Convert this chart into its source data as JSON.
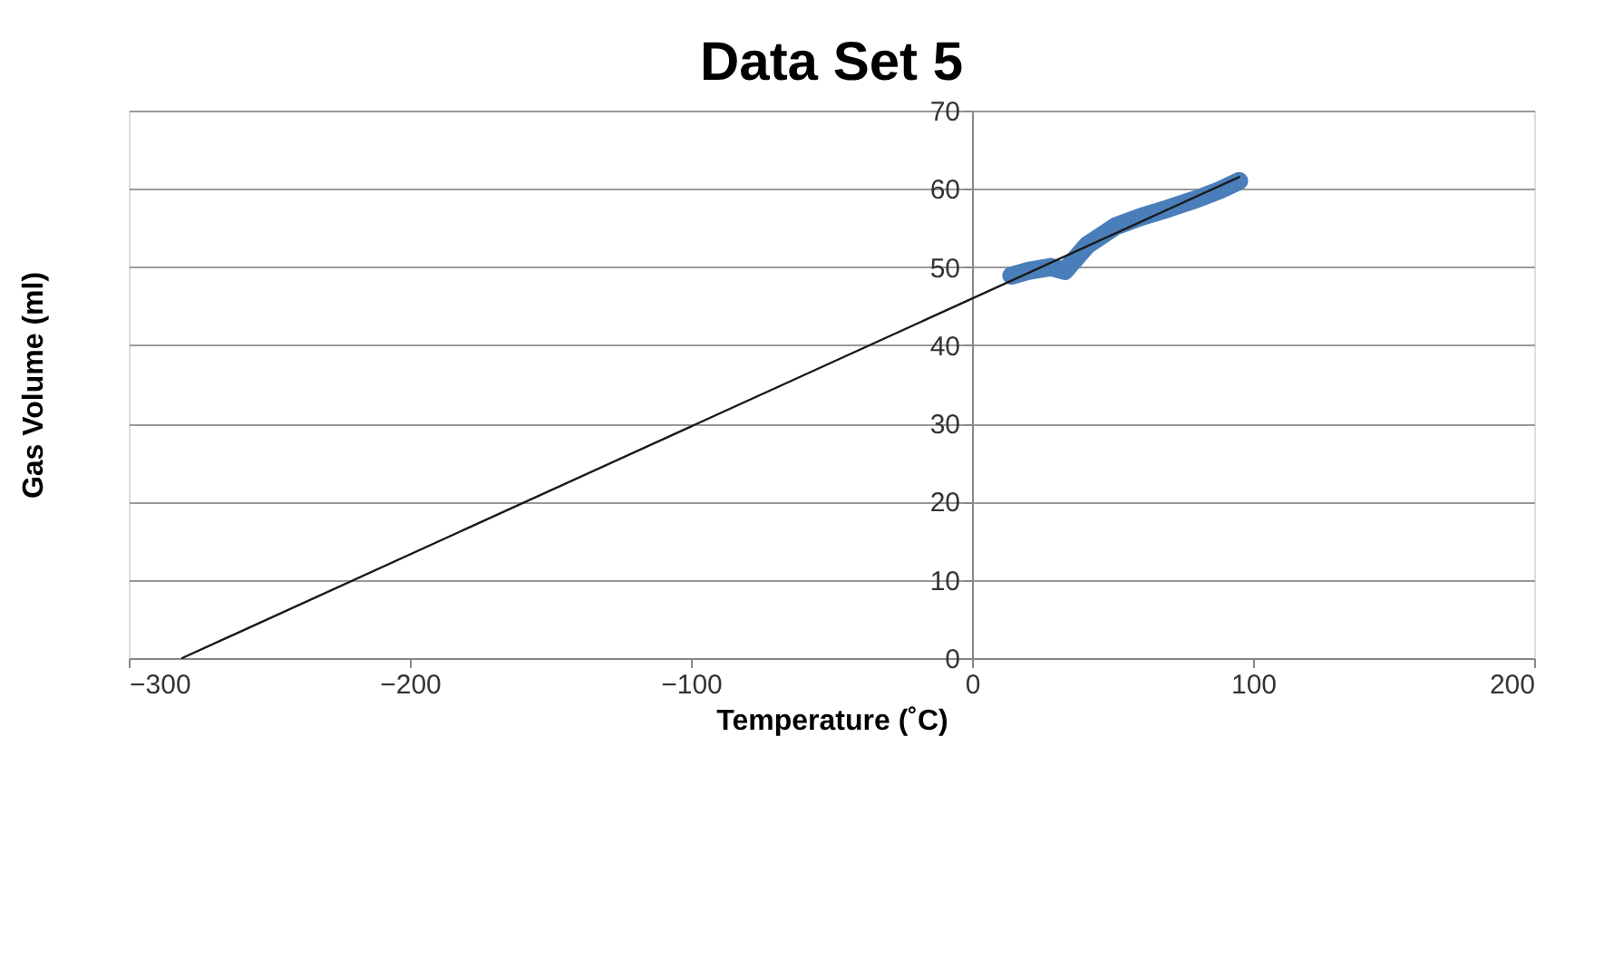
{
  "chart_data": {
    "type": "line",
    "title": "Data Set 5",
    "xlabel": "Temperature (˚C)",
    "ylabel": "Gas Volume (ml)",
    "xlim": [
      -300,
      200
    ],
    "xticks": [
      -300,
      -200,
      -100,
      0,
      100,
      200
    ],
    "ylim": [
      0,
      70
    ],
    "yticks": [
      0,
      10,
      20,
      30,
      40,
      50,
      60,
      70
    ],
    "grid": "y",
    "marker": "none",
    "series": [
      {
        "color": "#4a7ebb",
        "x": [
          14,
          20,
          28,
          33,
          41,
          51,
          60,
          70,
          80,
          88,
          95
        ],
        "values": [
          48.9,
          49.5,
          50,
          49.5,
          52.8,
          55.2,
          56.4,
          57.5,
          58.7,
          59.8,
          61
        ]
      },
      {
        "type": "line",
        "color": "#1a1a1a",
        "x": [
          -281,
          95
        ],
        "values": [
          0,
          61.5
        ]
      }
    ]
  }
}
